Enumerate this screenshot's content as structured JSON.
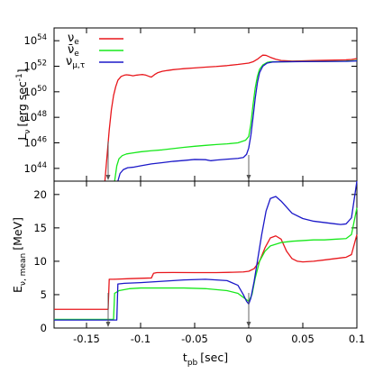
{
  "chart_data": [
    {
      "type": "line",
      "panel": "top",
      "ylabel": "L",
      "ylabel_sub": "ν",
      "ylabel_unit": "[erg sec",
      "ylabel_unit_sup": "-1",
      "ylabel_unit_end": "]",
      "yscale": "log",
      "xlim": [
        -0.18,
        0.1
      ],
      "ylim_log10": [
        43,
        55
      ],
      "ytick_base": "10",
      "ytick_exponents": [
        "44",
        "46",
        "48",
        "50",
        "52",
        "54"
      ],
      "legend": {
        "placement": "top-left",
        "entries": [
          {
            "label": "ν",
            "sub": "e",
            "color": "#e8161b"
          },
          {
            "label": "ν̄",
            "sub": "e",
            "color": "#17e81b"
          },
          {
            "label": "ν",
            "sub": "μ,τ",
            "color": "#1b18c8"
          }
        ]
      },
      "series": [
        {
          "name": "ν_e",
          "color": "#e8161b",
          "log10_values": [
            [
              -0.133,
              43
            ],
            [
              -0.129,
              47
            ],
            [
              -0.127,
              48.6
            ],
            [
              -0.125,
              49.7
            ],
            [
              -0.123,
              50.4
            ],
            [
              -0.121,
              50.9
            ],
            [
              -0.118,
              51.2
            ],
            [
              -0.115,
              51.3
            ],
            [
              -0.113,
              51.33
            ],
            [
              -0.11,
              51.3
            ],
            [
              -0.107,
              51.25
            ],
            [
              -0.104,
              51.3
            ],
            [
              -0.101,
              51.33
            ],
            [
              -0.098,
              51.35
            ],
            [
              -0.095,
              51.3
            ],
            [
              -0.092,
              51.2
            ],
            [
              -0.09,
              51.15
            ],
            [
              -0.087,
              51.35
            ],
            [
              -0.084,
              51.5
            ],
            [
              -0.08,
              51.6
            ],
            [
              -0.075,
              51.67
            ],
            [
              -0.07,
              51.73
            ],
            [
              -0.065,
              51.77
            ],
            [
              -0.06,
              51.81
            ],
            [
              -0.05,
              51.87
            ],
            [
              -0.04,
              51.93
            ],
            [
              -0.03,
              51.98
            ],
            [
              -0.02,
              52.05
            ],
            [
              -0.01,
              52.14
            ],
            [
              0.0,
              52.25
            ],
            [
              0.004,
              52.35
            ],
            [
              0.008,
              52.55
            ],
            [
              0.011,
              52.75
            ],
            [
              0.013,
              52.87
            ],
            [
              0.016,
              52.85
            ],
            [
              0.02,
              52.7
            ],
            [
              0.025,
              52.55
            ],
            [
              0.03,
              52.45
            ],
            [
              0.04,
              52.4
            ],
            [
              0.05,
              52.42
            ],
            [
              0.06,
              52.45
            ],
            [
              0.07,
              52.47
            ],
            [
              0.08,
              52.48
            ],
            [
              0.09,
              52.5
            ],
            [
              0.095,
              52.53
            ],
            [
              0.1,
              52.6
            ]
          ]
        },
        {
          "name": "ν̄_e",
          "color": "#17e81b",
          "log10_values": [
            [
              -0.124,
              43
            ],
            [
              -0.122,
              44.2
            ],
            [
              -0.12,
              44.75
            ],
            [
              -0.117,
              45.0
            ],
            [
              -0.113,
              45.13
            ],
            [
              -0.108,
              45.2
            ],
            [
              -0.1,
              45.3
            ],
            [
              -0.09,
              45.38
            ],
            [
              -0.08,
              45.45
            ],
            [
              -0.07,
              45.55
            ],
            [
              -0.06,
              45.65
            ],
            [
              -0.05,
              45.73
            ],
            [
              -0.04,
              45.8
            ],
            [
              -0.03,
              45.87
            ],
            [
              -0.02,
              45.92
            ],
            [
              -0.01,
              46.0
            ],
            [
              -0.003,
              46.2
            ],
            [
              0.0,
              46.5
            ],
            [
              0.002,
              47.5
            ],
            [
              0.004,
              49.0
            ],
            [
              0.006,
              50.3
            ],
            [
              0.008,
              51.2
            ],
            [
              0.01,
              51.75
            ],
            [
              0.013,
              52.1
            ],
            [
              0.017,
              52.3
            ],
            [
              0.02,
              52.35
            ],
            [
              0.03,
              52.35
            ],
            [
              0.05,
              52.37
            ],
            [
              0.07,
              52.38
            ],
            [
              0.09,
              52.4
            ],
            [
              0.1,
              52.45
            ]
          ]
        },
        {
          "name": "ν_μ,τ",
          "color": "#1b18c8",
          "log10_values": [
            [
              -0.121,
              43
            ],
            [
              -0.119,
              43.6
            ],
            [
              -0.116,
              43.9
            ],
            [
              -0.112,
              44.05
            ],
            [
              -0.106,
              44.1
            ],
            [
              -0.1,
              44.2
            ],
            [
              -0.09,
              44.35
            ],
            [
              -0.08,
              44.45
            ],
            [
              -0.07,
              44.55
            ],
            [
              -0.06,
              44.62
            ],
            [
              -0.05,
              44.7
            ],
            [
              -0.04,
              44.68
            ],
            [
              -0.035,
              44.6
            ],
            [
              -0.03,
              44.65
            ],
            [
              -0.02,
              44.72
            ],
            [
              -0.01,
              44.78
            ],
            [
              -0.005,
              44.85
            ],
            [
              -0.002,
              45.1
            ],
            [
              0.0,
              45.6
            ],
            [
              0.002,
              46.6
            ],
            [
              0.004,
              48.0
            ],
            [
              0.006,
              49.5
            ],
            [
              0.008,
              50.7
            ],
            [
              0.01,
              51.5
            ],
            [
              0.013,
              52.0
            ],
            [
              0.017,
              52.25
            ],
            [
              0.022,
              52.33
            ],
            [
              0.03,
              52.35
            ],
            [
              0.05,
              52.36
            ],
            [
              0.07,
              52.37
            ],
            [
              0.09,
              52.38
            ],
            [
              0.1,
              52.42
            ]
          ]
        }
      ],
      "arrows_at_x": [
        -0.13,
        0.0
      ]
    },
    {
      "type": "line",
      "panel": "bottom",
      "xlabel": "t",
      "xlabel_sub": "pb",
      "xlabel_unit": "[sec]",
      "ylabel": "E",
      "ylabel_sub": "ν, mean",
      "ylabel_unit": "[MeV]",
      "xlim": [
        -0.18,
        0.1
      ],
      "ylim": [
        0,
        22
      ],
      "xticks": [
        -0.15,
        -0.1,
        -0.05,
        0,
        0.05,
        0.1
      ],
      "xtick_labels": [
        "-0.15",
        "-0.1",
        "-0.05",
        "0",
        "0.05",
        "0.1"
      ],
      "yticks": [
        0,
        5,
        10,
        15,
        20
      ],
      "ytick_labels": [
        "0",
        "5",
        "10",
        "15",
        "20"
      ],
      "series": [
        {
          "name": "ν_e",
          "color": "#e8161b",
          "values": [
            [
              -0.18,
              2.8
            ],
            [
              -0.13,
              2.8
            ],
            [
              -0.129,
              7.3
            ],
            [
              -0.125,
              7.3
            ],
            [
              -0.11,
              7.4
            ],
            [
              -0.1,
              7.45
            ],
            [
              -0.09,
              7.5
            ],
            [
              -0.088,
              8.2
            ],
            [
              -0.085,
              8.3
            ],
            [
              -0.07,
              8.32
            ],
            [
              -0.05,
              8.3
            ],
            [
              -0.03,
              8.3
            ],
            [
              -0.015,
              8.35
            ],
            [
              -0.005,
              8.4
            ],
            [
              0.0,
              8.5
            ],
            [
              0.005,
              8.9
            ],
            [
              0.01,
              10.0
            ],
            [
              0.015,
              12.0
            ],
            [
              0.02,
              13.5
            ],
            [
              0.025,
              13.8
            ],
            [
              0.03,
              13.3
            ],
            [
              0.035,
              11.5
            ],
            [
              0.04,
              10.4
            ],
            [
              0.045,
              10.0
            ],
            [
              0.05,
              9.9
            ],
            [
              0.06,
              10.0
            ],
            [
              0.07,
              10.2
            ],
            [
              0.08,
              10.4
            ],
            [
              0.09,
              10.6
            ],
            [
              0.095,
              11.0
            ],
            [
              0.1,
              14.0
            ]
          ]
        },
        {
          "name": "ν̄_e",
          "color": "#17e81b",
          "values": [
            [
              -0.18,
              1.3
            ],
            [
              -0.125,
              1.3
            ],
            [
              -0.124,
              5.2
            ],
            [
              -0.12,
              5.6
            ],
            [
              -0.11,
              5.9
            ],
            [
              -0.1,
              6.0
            ],
            [
              -0.08,
              6.0
            ],
            [
              -0.06,
              6.0
            ],
            [
              -0.04,
              5.9
            ],
            [
              -0.02,
              5.6
            ],
            [
              -0.01,
              5.2
            ],
            [
              -0.005,
              4.6
            ],
            [
              0.0,
              4.0
            ],
            [
              0.003,
              5.0
            ],
            [
              0.006,
              7.5
            ],
            [
              0.01,
              10.0
            ],
            [
              0.015,
              11.5
            ],
            [
              0.02,
              12.3
            ],
            [
              0.03,
              12.8
            ],
            [
              0.04,
              13.0
            ],
            [
              0.05,
              13.1
            ],
            [
              0.06,
              13.2
            ],
            [
              0.07,
              13.2
            ],
            [
              0.08,
              13.3
            ],
            [
              0.09,
              13.4
            ],
            [
              0.095,
              14.0
            ],
            [
              0.1,
              18.0
            ]
          ]
        },
        {
          "name": "ν_μ,τ",
          "color": "#1b18c8",
          "values": [
            [
              -0.18,
              1.2
            ],
            [
              -0.122,
              1.2
            ],
            [
              -0.121,
              6.6
            ],
            [
              -0.115,
              6.7
            ],
            [
              -0.1,
              6.8
            ],
            [
              -0.08,
              7.0
            ],
            [
              -0.06,
              7.2
            ],
            [
              -0.04,
              7.3
            ],
            [
              -0.02,
              7.1
            ],
            [
              -0.01,
              6.4
            ],
            [
              -0.005,
              5.0
            ],
            [
              -0.002,
              4.0
            ],
            [
              0.0,
              3.6
            ],
            [
              0.002,
              4.5
            ],
            [
              0.005,
              7.0
            ],
            [
              0.008,
              10.0
            ],
            [
              0.012,
              14.0
            ],
            [
              0.016,
              17.5
            ],
            [
              0.02,
              19.4
            ],
            [
              0.025,
              19.7
            ],
            [
              0.03,
              19.0
            ],
            [
              0.04,
              17.2
            ],
            [
              0.05,
              16.4
            ],
            [
              0.06,
              16.0
            ],
            [
              0.07,
              15.8
            ],
            [
              0.08,
              15.6
            ],
            [
              0.085,
              15.5
            ],
            [
              0.09,
              15.6
            ],
            [
              0.095,
              16.5
            ],
            [
              0.1,
              22.0
            ]
          ]
        }
      ],
      "arrows_at_x": [
        -0.13,
        0.0
      ]
    }
  ]
}
